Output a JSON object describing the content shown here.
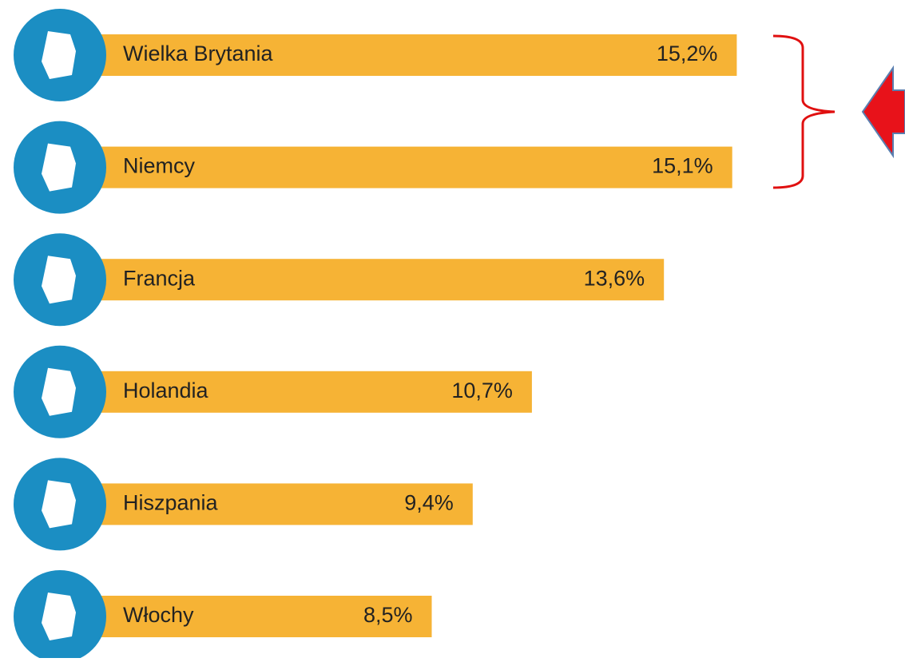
{
  "chart_data": {
    "type": "hbar",
    "categories": [
      "Wielka Brytania",
      "Niemcy",
      "Francja",
      "Holandia",
      "Hiszpania",
      "Włochy"
    ],
    "values": [
      15.2,
      15.1,
      13.6,
      10.7,
      9.4,
      8.5
    ],
    "value_labels": [
      "15,2%",
      "15,1%",
      "13,6%",
      "10,7%",
      "9,4%",
      "8,5%"
    ],
    "color": "#f6b335"
  }
}
